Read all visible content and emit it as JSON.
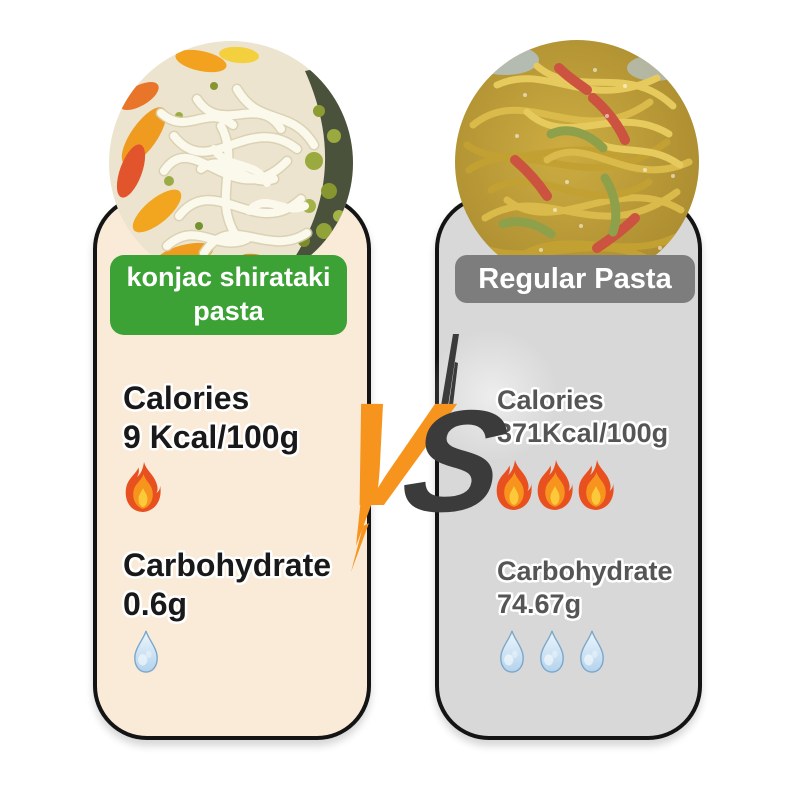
{
  "comparison": {
    "left": {
      "name": "konjac shirataki pasta",
      "calories": {
        "title": "Calories",
        "value": "9 Kcal/100g",
        "flames": 1
      },
      "carbs": {
        "title": "Carbohydrate",
        "value": "0.6g",
        "drops": 1
      }
    },
    "right": {
      "name": "Regular Pasta",
      "calories": {
        "title": "Calories",
        "value": "371Kcal/100g",
        "flames": 3
      },
      "carbs": {
        "title": "Carbohydrate",
        "value": "74.67g",
        "drops": 3
      }
    },
    "vs": {
      "v": "V",
      "s": "S"
    }
  },
  "colors": {
    "left_card_bg": "#faebd9",
    "right_card_bg": "#d8d8d8",
    "left_label_bg": "#3ca235",
    "right_label_bg": "#7d7d7d",
    "left_text": "#191919",
    "right_text": "#555555",
    "vs_v": "#f7941e",
    "vs_s": "#3b3b3b",
    "border": "#141414"
  },
  "icons": {
    "flame": "flame-icon",
    "drop": "water-drop-icon"
  }
}
